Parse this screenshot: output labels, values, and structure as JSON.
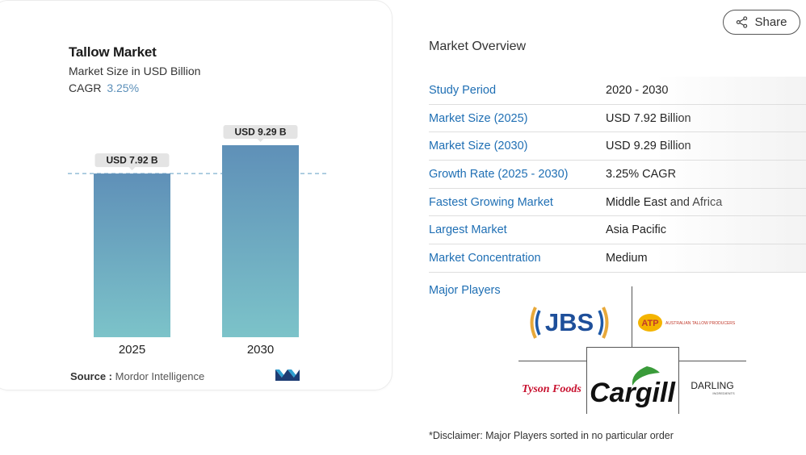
{
  "chart": {
    "title": "Tallow Market",
    "subtitle": "Market Size in USD Billion",
    "cagr_label": "CAGR",
    "cagr_value": "3.25%",
    "source_label": "Source :",
    "source_value": "Mordor Intelligence",
    "logo_name": "mordor-intelligence-logo"
  },
  "chart_data": {
    "type": "bar",
    "categories": [
      "2025",
      "2030"
    ],
    "values": [
      7.92,
      9.29
    ],
    "data_labels": [
      "USD 7.92 B",
      "USD 9.29 B"
    ],
    "title": "Tallow Market",
    "subtitle": "Market Size in USD Billion",
    "ylim": [
      0,
      9.29
    ],
    "reference_line": 7.92,
    "grid": false,
    "colors": {
      "bar_top": "#5f90b8",
      "bar_bottom": "#7cc3c9",
      "label_bg": "#e4e4e4",
      "reference_line": "#7fb1cf"
    }
  },
  "share": {
    "label": "Share",
    "icon": "share-icon"
  },
  "overview": {
    "title": "Market Overview",
    "rows": [
      {
        "label": "Study Period",
        "value": "2020 - 2030"
      },
      {
        "label": "Market Size (2025)",
        "value": "USD 7.92 Billion"
      },
      {
        "label": "Market Size (2030)",
        "value": "USD 9.29 Billion"
      },
      {
        "label": "Growth Rate (2025 - 2030)",
        "value": "3.25% CAGR"
      },
      {
        "label": "Fastest Growing Market",
        "value": "Middle East and Africa"
      },
      {
        "label": "Largest Market",
        "value": "Asia Pacific"
      },
      {
        "label": "Market Concentration",
        "value": "Medium"
      }
    ],
    "players_label": "Major Players",
    "players": {
      "jbs": "JBS",
      "atp": "ATP",
      "atp_tagline": "AUSTRALIAN TALLOW PRODUCERS",
      "tyson": "Tyson Foods",
      "cargill": "Cargill",
      "darling": "DARLING",
      "darling_tagline": "INGREDIENTS"
    },
    "disclaimer": "*Disclaimer: Major Players sorted in no particular order"
  }
}
